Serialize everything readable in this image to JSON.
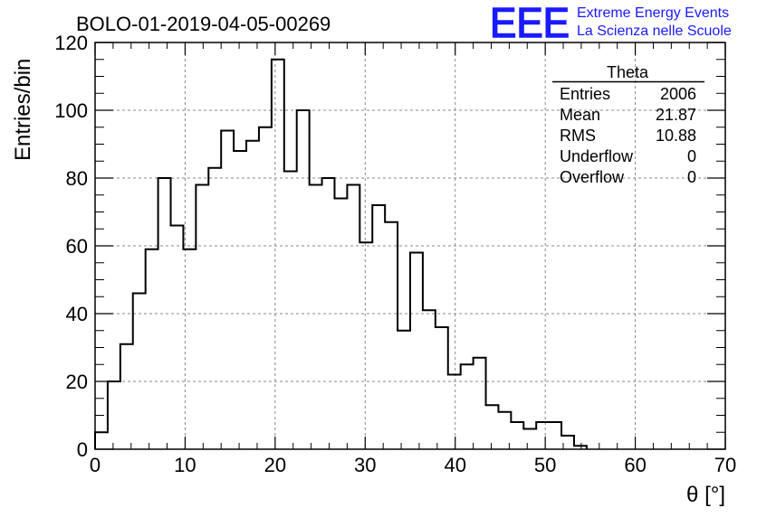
{
  "chart_data": {
    "type": "histogram",
    "title": "BOLO-01-2019-04-05-00269",
    "xlabel": "θ [°]",
    "ylabel": "Entries/bin",
    "xlim": [
      0,
      70
    ],
    "ylim": [
      0,
      120
    ],
    "x_ticks": [
      "0",
      "10",
      "20",
      "30",
      "40",
      "50",
      "60",
      "70"
    ],
    "y_ticks": [
      "0",
      "20",
      "40",
      "60",
      "80",
      "100",
      "120"
    ],
    "grid": true,
    "bin_edges": [
      0,
      1.4,
      2.8,
      4.2,
      5.6,
      7,
      8.4,
      9.8,
      11.2,
      12.6,
      14,
      15.4,
      16.8,
      18.2,
      19.6,
      21,
      22.4,
      23.8,
      25.2,
      26.6,
      28,
      29.4,
      30.8,
      32.2,
      33.6,
      35,
      36.4,
      37.8,
      39.2,
      40.6,
      42,
      43.4,
      44.8,
      46.2,
      47.6,
      49,
      50.4,
      51.8,
      53.2,
      54.6
    ],
    "values": [
      5,
      20,
      31,
      46,
      59,
      80,
      66,
      59,
      78,
      83,
      94,
      88,
      91,
      95,
      115,
      82,
      100,
      78,
      80,
      74,
      78,
      61,
      72,
      67,
      35,
      58,
      41,
      36,
      22,
      25,
      27,
      13,
      11,
      8,
      6,
      8,
      8,
      4,
      1
    ]
  },
  "stats_box": {
    "name": "Theta",
    "rows": [
      {
        "label": "Entries",
        "value": "2006"
      },
      {
        "label": "Mean",
        "value": "21.87"
      },
      {
        "label": "RMS",
        "value": "10.88"
      },
      {
        "label": "Underflow",
        "value": "0"
      },
      {
        "label": "Overflow",
        "value": "0"
      }
    ]
  },
  "logo": {
    "text": "EEE",
    "line1": "Extreme Energy Events",
    "line2": "La Scienza nelle Scuole",
    "color": "#1a1aff"
  }
}
